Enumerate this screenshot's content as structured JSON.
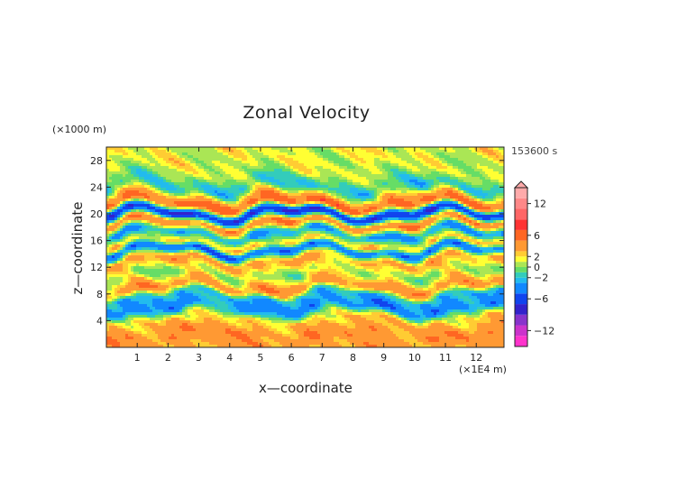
{
  "chart_data": {
    "type": "heatmap",
    "title": "Zonal Velocity",
    "xlabel": "x—coordinate",
    "ylabel": "z—coordinate",
    "x_unit": "(×1E4 m)",
    "y_unit": "(×1000 m)",
    "time_label": "153600 s",
    "xlim": [
      0,
      12.9
    ],
    "ylim": [
      0,
      30
    ],
    "x_ticks": [
      1,
      2,
      3,
      4,
      5,
      6,
      7,
      8,
      9,
      10,
      11,
      12
    ],
    "y_ticks": [
      4,
      8,
      12,
      16,
      20,
      24,
      28
    ],
    "colorbar": {
      "range": [
        -15,
        15
      ],
      "tick_values": [
        12,
        6,
        2,
        0,
        -2,
        -6,
        -12
      ],
      "tick_labels": [
        "12",
        "6",
        "2",
        "0",
        "−2",
        "−6",
        "−12"
      ],
      "levels": [
        {
          "lo": -15,
          "hi": -13,
          "color": "#ff33cc"
        },
        {
          "lo": -13,
          "hi": -11,
          "color": "#cc33cc"
        },
        {
          "lo": -11,
          "hi": -9,
          "color": "#8833cc"
        },
        {
          "lo": -9,
          "hi": -7,
          "color": "#3322cc"
        },
        {
          "lo": -7,
          "hi": -5,
          "color": "#1144ee"
        },
        {
          "lo": -5,
          "hi": -3,
          "color": "#1188ff"
        },
        {
          "lo": -3,
          "hi": -2,
          "color": "#22bbee"
        },
        {
          "lo": -2,
          "hi": -1,
          "color": "#33ccbb"
        },
        {
          "lo": -1,
          "hi": 0,
          "color": "#66dd66"
        },
        {
          "lo": 0,
          "hi": 1,
          "color": "#aae655"
        },
        {
          "lo": 1,
          "hi": 2,
          "color": "#ffff33"
        },
        {
          "lo": 2,
          "hi": 3,
          "color": "#ffcc33"
        },
        {
          "lo": 3,
          "hi": 5,
          "color": "#ff9933"
        },
        {
          "lo": 5,
          "hi": 7,
          "color": "#ff6622"
        },
        {
          "lo": 7,
          "hi": 9,
          "color": "#ff3333"
        },
        {
          "lo": 9,
          "hi": 11,
          "color": "#ff6666"
        },
        {
          "lo": 11,
          "hi": 13,
          "color": "#ff8888"
        },
        {
          "lo": 13,
          "hi": 15,
          "color": "#ffaaaa"
        }
      ]
    },
    "field_bands": [
      {
        "z": 28.5,
        "u": 1.2
      },
      {
        "z": 26.5,
        "u": 0.7
      },
      {
        "z": 24.0,
        "u": -1.5
      },
      {
        "z": 21.5,
        "u": 5.5
      },
      {
        "z": 20.0,
        "u": -6.5
      },
      {
        "z": 18.5,
        "u": 4.5
      },
      {
        "z": 17.0,
        "u": -3.0
      },
      {
        "z": 15.5,
        "u": 2.0
      },
      {
        "z": 14.5,
        "u": -4.5
      },
      {
        "z": 13.0,
        "u": 3.5
      },
      {
        "z": 11.0,
        "u": 0.3
      },
      {
        "z": 9.0,
        "u": 4.0
      },
      {
        "z": 7.5,
        "u": -2.5
      },
      {
        "z": 6.0,
        "u": -4.0
      },
      {
        "z": 4.0,
        "u": 2.5
      },
      {
        "z": 2.0,
        "u": 4.5
      },
      {
        "z": 0.5,
        "u": 3.5
      }
    ]
  }
}
